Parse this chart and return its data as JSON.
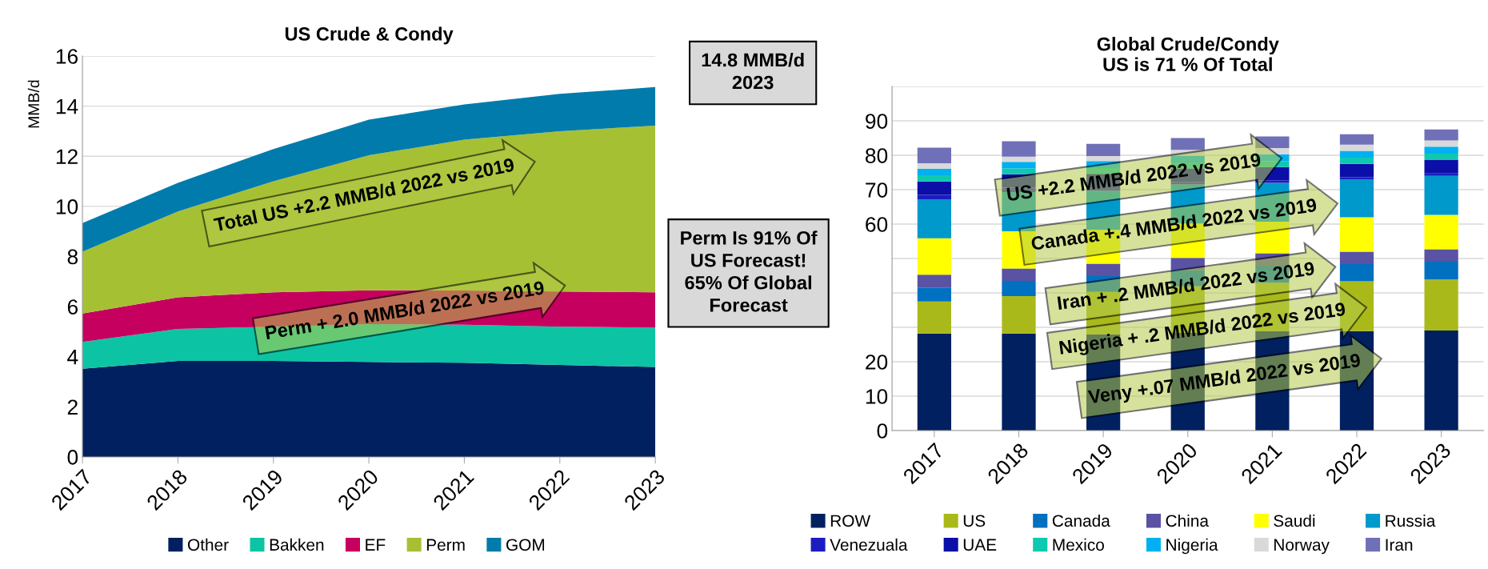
{
  "chart_data": [
    {
      "type": "area",
      "title": "US Crude & Condy",
      "ylabel": "MMB/d",
      "stacked": true,
      "grid": "y",
      "legend": "bottom",
      "x": [
        2017,
        2018,
        2019,
        2020,
        2021,
        2022,
        2023
      ],
      "xlim": [
        2017,
        2023
      ],
      "xticks": [
        2017,
        2018,
        2019,
        2020,
        2021,
        2022,
        2023
      ],
      "ylim": [
        0,
        16
      ],
      "yticks": [
        0,
        2,
        4,
        6,
        8,
        10,
        12,
        14,
        16
      ],
      "series": [
        {
          "name": "Other",
          "color": "#002060",
          "values": [
            3.52,
            3.83,
            3.83,
            3.79,
            3.76,
            3.67,
            3.59
          ]
        },
        {
          "name": "Bakken",
          "color": "#0cc4a4",
          "values": [
            1.07,
            1.28,
            1.37,
            1.51,
            1.52,
            1.53,
            1.57
          ]
        },
        {
          "name": "EF",
          "color": "#c5005f",
          "values": [
            1.13,
            1.26,
            1.37,
            1.35,
            1.36,
            1.4,
            1.41
          ]
        },
        {
          "name": "Perm",
          "color": "#a6c034",
          "values": [
            2.47,
            3.43,
            4.43,
            5.39,
            6.02,
            6.4,
            6.65
          ]
        },
        {
          "name": "GOM",
          "color": "#007bac",
          "values": [
            1.14,
            1.14,
            1.29,
            1.42,
            1.41,
            1.49,
            1.54
          ]
        }
      ],
      "annotations": [
        "Total US +2.2 MMB/d 2022 vs 2019",
        "Perm + 2.0 MMB/d 2022 vs 2019"
      ]
    },
    {
      "type": "bar",
      "title": "Global Crude/Condy\nUS is 71 % Of Total",
      "stacked": true,
      "grid": "y",
      "legend": "bottom",
      "categories": [
        "2017",
        "2018",
        "2019",
        "2020",
        "2021",
        "2022",
        "2023"
      ],
      "ylim": [
        0,
        100
      ],
      "yticks": [
        0,
        10,
        20,
        {
          "value": 30,
          "label": null
        },
        {
          "value": 40,
          "label": null
        },
        {
          "value": 50,
          "label": null
        },
        60,
        70,
        80,
        90,
        {
          "value": 100,
          "label": null
        }
      ],
      "series": [
        {
          "name": "ROW",
          "color": "#002060",
          "values": [
            28.2,
            28.2,
            28.0,
            28.4,
            28.9,
            28.9,
            29.1
          ]
        },
        {
          "name": "US",
          "color": "#a9b91a",
          "values": [
            9.3,
            10.9,
            12.3,
            13.5,
            14.1,
            14.5,
            14.8
          ]
        },
        {
          "name": "Canada",
          "color": "#0070c0",
          "values": [
            4.1,
            4.4,
            4.6,
            4.7,
            4.9,
            5.0,
            5.2
          ]
        },
        {
          "name": "China",
          "color": "#5a52a3",
          "values": [
            3.7,
            3.6,
            3.6,
            3.6,
            3.6,
            3.6,
            3.6
          ]
        },
        {
          "name": "Saudi",
          "color": "#ffff00",
          "values": [
            10.6,
            10.8,
            9.8,
            10.0,
            9.2,
            10.0,
            10.0
          ]
        },
        {
          "name": "Russia",
          "color": "#0099cc",
          "values": [
            11.2,
            11.4,
            11.4,
            11.3,
            11.3,
            10.9,
            11.3
          ]
        },
        {
          "name": "Venezuala",
          "color": "#1c1cc0",
          "values": [
            1.4,
            1.3,
            1.0,
            0.8,
            0.7,
            0.7,
            0.7
          ]
        },
        {
          "name": "UAE",
          "color": "#0b0fa8",
          "values": [
            3.9,
            3.9,
            3.9,
            3.9,
            3.9,
            3.9,
            3.9
          ]
        },
        {
          "name": "Mexico",
          "color": "#10c8b0",
          "values": [
            1.8,
            1.7,
            1.7,
            1.7,
            1.7,
            1.8,
            1.9
          ]
        },
        {
          "name": "Nigeria",
          "color": "#00b0f0",
          "values": [
            1.9,
            1.9,
            2.0,
            2.0,
            2.0,
            2.0,
            2.0
          ]
        },
        {
          "name": "Norway",
          "color": "#d9d9d9",
          "values": [
            1.6,
            1.5,
            1.5,
            1.7,
            1.8,
            1.8,
            1.8
          ]
        },
        {
          "name": "Iran",
          "color": "#7070b8",
          "values": [
            4.5,
            4.5,
            3.5,
            3.4,
            3.4,
            3.0,
            3.2
          ]
        }
      ],
      "annotations": [
        "14.8 MMB/d\n2023",
        "Perm Is 91% Of\nUS Forecast!\n65% Of Global\nForecast",
        "US +2.2 MMB/d 2022 vs 2019",
        "Canada +.4 MMB/d 2022 vs 2019",
        "Iran + .2 MMB/d 2022 vs 2019",
        "Nigeria + .2 MMB/d 2022 vs 2019",
        "Veny +.07 MMB/d 2022 vs 2019"
      ]
    }
  ]
}
